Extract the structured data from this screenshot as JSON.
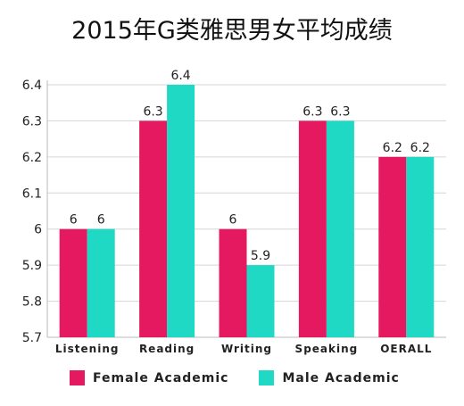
{
  "chart_data": {
    "type": "bar",
    "title": "2015年G类雅思男女平均成绩",
    "categories": [
      "Listening",
      "Reading",
      "Writing",
      "Speaking",
      "OERALL"
    ],
    "series": [
      {
        "name": "Female Academic",
        "values": [
          6,
          6.3,
          6,
          6.3,
          6.2
        ],
        "labels": [
          "6",
          "6.3",
          "6",
          "6.3",
          "6.2"
        ],
        "color": "#e5195f"
      },
      {
        "name": "Male Academic",
        "values": [
          6,
          6.4,
          5.9,
          6.3,
          6.2
        ],
        "labels": [
          "6",
          "6.4",
          "5.9",
          "6.3",
          "6.2"
        ],
        "color": "#1fd9c4"
      }
    ],
    "ylim": [
      5.7,
      6.4
    ],
    "yticks": [
      "5.7",
      "5.8",
      "5.9",
      "6",
      "6.1",
      "6.2",
      "6.3",
      "6.4"
    ],
    "grid": true,
    "legend": "bottom"
  }
}
